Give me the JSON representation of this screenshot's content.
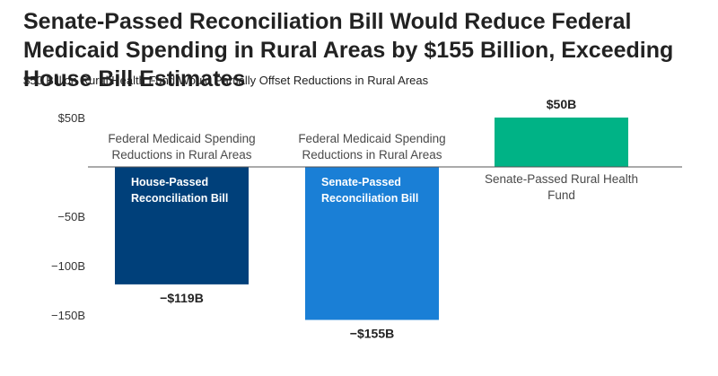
{
  "chart_data": {
    "type": "bar",
    "title": "Senate-Passed Reconciliation Bill Would Reduce Federal Medicaid Spending in Rural Areas by $155 Billion, Exceeding House Bill Estimates",
    "subtitle": "$50 Billion Rural Health Fund Would Partially Offset Reductions in Rural Areas",
    "ylim": [
      -150,
      50
    ],
    "yticks": [
      50,
      -50,
      -100,
      -150
    ],
    "ytick_labels": [
      "$50B",
      "−50B",
      "−100B",
      "−150B"
    ],
    "grid": false,
    "bars": [
      {
        "category": "Federal Medicaid Spending Reductions in Rural Areas",
        "category_lines": [
          "Federal Medicaid Spending",
          "Reductions in Rural Areas"
        ],
        "bar_label_lines": [
          "House-Passed",
          "Reconciliation Bill"
        ],
        "value": -119,
        "value_label": "−$119B",
        "color": "#00407a"
      },
      {
        "category": "Federal Medicaid Spending Reductions in Rural Areas",
        "category_lines": [
          "Federal Medicaid Spending",
          "Reductions in Rural Areas"
        ],
        "bar_label_lines": [
          "Senate-Passed",
          "Reconciliation Bill"
        ],
        "value": -155,
        "value_label": "−$155B",
        "color": "#1a7fd6"
      },
      {
        "category": "Senate-Passed Rural Health Fund",
        "category_lines": [
          "Senate-Passed Rural Health",
          "Fund"
        ],
        "bar_label_lines": [],
        "value": 50,
        "value_label": "$50B",
        "color": "#00b386"
      }
    ]
  }
}
